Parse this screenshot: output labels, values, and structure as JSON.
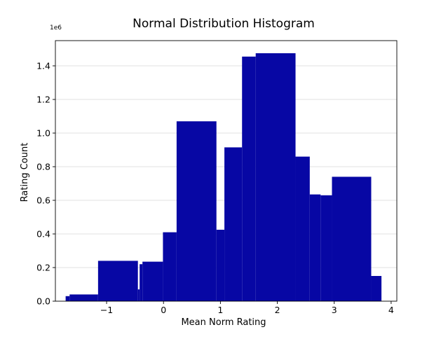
{
  "chart_data": {
    "type": "bar",
    "title": "Normal Distribution Histogram",
    "xlabel": "Mean Norm Rating",
    "ylabel": "Rating Count",
    "y_offset_label": "1e6",
    "xlim": [
      -1.9,
      4.1
    ],
    "ylim": [
      0,
      1.55
    ],
    "x_ticks": [
      -1,
      0,
      1,
      2,
      3,
      4
    ],
    "x_tick_labels": [
      "−1",
      "0",
      "1",
      "2",
      "3",
      "4"
    ],
    "y_ticks": [
      0.0,
      0.2,
      0.4,
      0.6,
      0.8,
      1.0,
      1.2,
      1.4
    ],
    "y_tick_labels": [
      "0.0",
      "0.2",
      "0.4",
      "0.6",
      "0.8",
      "1.0",
      "1.2",
      "1.4"
    ],
    "grid": "horizontal",
    "bar_color": "#0707a4",
    "bins": [
      {
        "x0": -1.72,
        "x1": -1.65,
        "value": 0.03
      },
      {
        "x0": -1.65,
        "x1": -1.15,
        "value": 0.04
      },
      {
        "x0": -1.15,
        "x1": -0.45,
        "value": 0.24
      },
      {
        "x0": -0.45,
        "x1": -0.42,
        "value": 0.07
      },
      {
        "x0": -0.42,
        "x1": -0.37,
        "value": 0.22
      },
      {
        "x0": -0.37,
        "x1": -0.01,
        "value": 0.235
      },
      {
        "x0": -0.01,
        "x1": 0.23,
        "value": 0.41
      },
      {
        "x0": 0.23,
        "x1": 0.93,
        "value": 1.07
      },
      {
        "x0": 0.93,
        "x1": 1.07,
        "value": 0.425
      },
      {
        "x0": 1.07,
        "x1": 1.38,
        "value": 0.915
      },
      {
        "x0": 1.38,
        "x1": 1.62,
        "value": 1.455
      },
      {
        "x0": 1.62,
        "x1": 2.32,
        "value": 1.475
      },
      {
        "x0": 2.32,
        "x1": 2.57,
        "value": 0.86
      },
      {
        "x0": 2.57,
        "x1": 2.76,
        "value": 0.635
      },
      {
        "x0": 2.76,
        "x1": 2.96,
        "value": 0.63
      },
      {
        "x0": 2.96,
        "x1": 3.65,
        "value": 0.74
      },
      {
        "x0": 3.65,
        "x1": 3.83,
        "value": 0.15
      }
    ]
  }
}
